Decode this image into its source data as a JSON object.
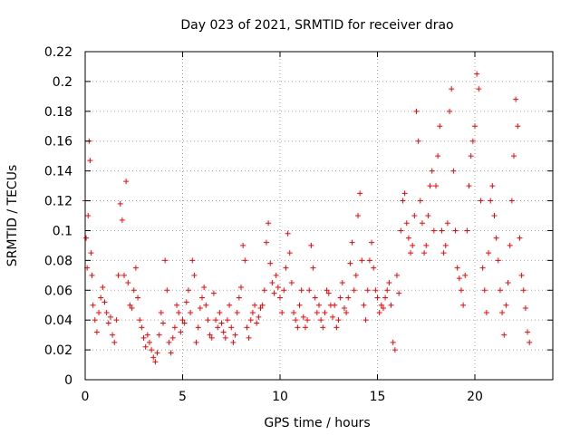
{
  "chart_data": {
    "type": "scatter",
    "title": "Day 023 of 2021, SRMTID for receiver drao",
    "xlabel": "GPS time / hours",
    "ylabel": "SRMTID / TECUs",
    "xlim": [
      0,
      24
    ],
    "ylim": [
      0,
      0.22
    ],
    "xticks": [
      0,
      5,
      10,
      15,
      20
    ],
    "xtick_labels": [
      "0",
      "5",
      "10",
      "15",
      "20"
    ],
    "yticks": [
      0,
      0.02,
      0.04,
      0.06,
      0.08,
      0.1,
      0.12,
      0.14,
      0.16,
      0.18,
      0.2,
      0.22
    ],
    "ytick_labels": [
      "0",
      "0.02",
      "0.04",
      "0.06",
      "0.08",
      "0.1",
      "0.12",
      "0.14",
      "0.16",
      "0.18",
      "0.2",
      "0.22"
    ],
    "grid": true,
    "marker": "+",
    "color": "#ff0000",
    "series": [
      {
        "name": "SRMTID",
        "points": [
          [
            0.0,
            0.12
          ],
          [
            0.05,
            0.095
          ],
          [
            0.1,
            0.075
          ],
          [
            0.15,
            0.11
          ],
          [
            0.2,
            0.16
          ],
          [
            0.25,
            0.147
          ],
          [
            0.3,
            0.085
          ],
          [
            0.35,
            0.07
          ],
          [
            0.4,
            0.05
          ],
          [
            0.5,
            0.04
          ],
          [
            0.6,
            0.032
          ],
          [
            0.7,
            0.045
          ],
          [
            0.8,
            0.055
          ],
          [
            0.9,
            0.062
          ],
          [
            1.0,
            0.052
          ],
          [
            1.1,
            0.045
          ],
          [
            1.2,
            0.038
          ],
          [
            1.3,
            0.042
          ],
          [
            1.4,
            0.03
          ],
          [
            1.5,
            0.025
          ],
          [
            1.6,
            0.04
          ],
          [
            1.7,
            0.07
          ],
          [
            1.8,
            0.118
          ],
          [
            1.9,
            0.107
          ],
          [
            2.0,
            0.07
          ],
          [
            2.1,
            0.133
          ],
          [
            2.2,
            0.065
          ],
          [
            2.3,
            0.05
          ],
          [
            2.4,
            0.048
          ],
          [
            2.5,
            0.06
          ],
          [
            2.6,
            0.075
          ],
          [
            2.7,
            0.055
          ],
          [
            2.8,
            0.04
          ],
          [
            2.9,
            0.035
          ],
          [
            3.0,
            0.028
          ],
          [
            3.1,
            0.022
          ],
          [
            3.2,
            0.03
          ],
          [
            3.3,
            0.025
          ],
          [
            3.4,
            0.02
          ],
          [
            3.5,
            0.015
          ],
          [
            3.6,
            0.012
          ],
          [
            3.7,
            0.018
          ],
          [
            3.8,
            0.03
          ],
          [
            3.9,
            0.045
          ],
          [
            4.0,
            0.038
          ],
          [
            4.1,
            0.08
          ],
          [
            4.2,
            0.06
          ],
          [
            4.3,
            0.025
          ],
          [
            4.4,
            0.018
          ],
          [
            4.5,
            0.028
          ],
          [
            4.6,
            0.035
          ],
          [
            4.7,
            0.05
          ],
          [
            4.8,
            0.045
          ],
          [
            4.9,
            0.032
          ],
          [
            5.0,
            0.04
          ],
          [
            5.1,
            0.038
          ],
          [
            5.2,
            0.052
          ],
          [
            5.3,
            0.06
          ],
          [
            5.4,
            0.045
          ],
          [
            5.5,
            0.08
          ],
          [
            5.6,
            0.07
          ],
          [
            5.7,
            0.025
          ],
          [
            5.8,
            0.035
          ],
          [
            5.9,
            0.048
          ],
          [
            6.0,
            0.055
          ],
          [
            6.1,
            0.062
          ],
          [
            6.2,
            0.05
          ],
          [
            6.3,
            0.04
          ],
          [
            6.4,
            0.03
          ],
          [
            6.5,
            0.028
          ],
          [
            6.6,
            0.058
          ],
          [
            6.7,
            0.04
          ],
          [
            6.8,
            0.035
          ],
          [
            6.9,
            0.045
          ],
          [
            7.0,
            0.038
          ],
          [
            7.1,
            0.032
          ],
          [
            7.2,
            0.028
          ],
          [
            7.3,
            0.04
          ],
          [
            7.4,
            0.05
          ],
          [
            7.5,
            0.035
          ],
          [
            7.6,
            0.025
          ],
          [
            7.7,
            0.03
          ],
          [
            7.8,
            0.045
          ],
          [
            7.9,
            0.055
          ],
          [
            8.0,
            0.062
          ],
          [
            8.1,
            0.09
          ],
          [
            8.2,
            0.08
          ],
          [
            8.3,
            0.035
          ],
          [
            8.4,
            0.028
          ],
          [
            8.5,
            0.04
          ],
          [
            8.6,
            0.045
          ],
          [
            8.7,
            0.05
          ],
          [
            8.8,
            0.038
          ],
          [
            8.9,
            0.042
          ],
          [
            9.0,
            0.048
          ],
          [
            9.1,
            0.05
          ],
          [
            9.2,
            0.06
          ],
          [
            9.3,
            0.092
          ],
          [
            9.4,
            0.105
          ],
          [
            9.5,
            0.078
          ],
          [
            9.6,
            0.065
          ],
          [
            9.7,
            0.058
          ],
          [
            9.8,
            0.07
          ],
          [
            9.9,
            0.062
          ],
          [
            10.0,
            0.055
          ],
          [
            10.1,
            0.045
          ],
          [
            10.2,
            0.06
          ],
          [
            10.3,
            0.075
          ],
          [
            10.4,
            0.098
          ],
          [
            10.5,
            0.085
          ],
          [
            10.6,
            0.065
          ],
          [
            10.7,
            0.045
          ],
          [
            10.8,
            0.04
          ],
          [
            10.9,
            0.035
          ],
          [
            11.0,
            0.05
          ],
          [
            11.1,
            0.06
          ],
          [
            11.2,
            0.042
          ],
          [
            11.3,
            0.035
          ],
          [
            11.4,
            0.04
          ],
          [
            11.5,
            0.06
          ],
          [
            11.6,
            0.09
          ],
          [
            11.7,
            0.075
          ],
          [
            11.8,
            0.055
          ],
          [
            11.9,
            0.045
          ],
          [
            12.0,
            0.05
          ],
          [
            12.1,
            0.04
          ],
          [
            12.2,
            0.035
          ],
          [
            12.3,
            0.045
          ],
          [
            12.4,
            0.06
          ],
          [
            12.5,
            0.058
          ],
          [
            12.6,
            0.05
          ],
          [
            12.7,
            0.042
          ],
          [
            12.8,
            0.05
          ],
          [
            12.9,
            0.035
          ],
          [
            13.0,
            0.04
          ],
          [
            13.1,
            0.055
          ],
          [
            13.2,
            0.065
          ],
          [
            13.3,
            0.048
          ],
          [
            13.4,
            0.045
          ],
          [
            13.5,
            0.055
          ],
          [
            13.6,
            0.078
          ],
          [
            13.7,
            0.092
          ],
          [
            13.8,
            0.06
          ],
          [
            13.9,
            0.07
          ],
          [
            14.0,
            0.11
          ],
          [
            14.1,
            0.125
          ],
          [
            14.2,
            0.08
          ],
          [
            14.3,
            0.05
          ],
          [
            14.4,
            0.04
          ],
          [
            14.5,
            0.06
          ],
          [
            14.6,
            0.08
          ],
          [
            14.7,
            0.092
          ],
          [
            14.8,
            0.075
          ],
          [
            14.9,
            0.06
          ],
          [
            15.0,
            0.055
          ],
          [
            15.1,
            0.045
          ],
          [
            15.2,
            0.05
          ],
          [
            15.3,
            0.048
          ],
          [
            15.4,
            0.055
          ],
          [
            15.5,
            0.06
          ],
          [
            15.6,
            0.065
          ],
          [
            15.7,
            0.05
          ],
          [
            15.8,
            0.025
          ],
          [
            15.9,
            0.02
          ],
          [
            16.0,
            0.07
          ],
          [
            16.1,
            0.058
          ],
          [
            16.2,
            0.1
          ],
          [
            16.3,
            0.12
          ],
          [
            16.4,
            0.125
          ],
          [
            16.5,
            0.105
          ],
          [
            16.6,
            0.095
          ],
          [
            16.7,
            0.085
          ],
          [
            16.8,
            0.09
          ],
          [
            16.9,
            0.11
          ],
          [
            17.0,
            0.18
          ],
          [
            17.1,
            0.16
          ],
          [
            17.2,
            0.12
          ],
          [
            17.3,
            0.105
          ],
          [
            17.4,
            0.085
          ],
          [
            17.5,
            0.09
          ],
          [
            17.6,
            0.11
          ],
          [
            17.7,
            0.13
          ],
          [
            17.8,
            0.14
          ],
          [
            17.9,
            0.1
          ],
          [
            18.0,
            0.13
          ],
          [
            18.1,
            0.15
          ],
          [
            18.2,
            0.17
          ],
          [
            18.3,
            0.1
          ],
          [
            18.4,
            0.085
          ],
          [
            18.5,
            0.09
          ],
          [
            18.6,
            0.105
          ],
          [
            18.7,
            0.18
          ],
          [
            18.8,
            0.195
          ],
          [
            18.9,
            0.14
          ],
          [
            19.0,
            0.1
          ],
          [
            19.1,
            0.075
          ],
          [
            19.2,
            0.068
          ],
          [
            19.3,
            0.06
          ],
          [
            19.4,
            0.05
          ],
          [
            19.5,
            0.07
          ],
          [
            19.6,
            0.1
          ],
          [
            19.7,
            0.13
          ],
          [
            19.8,
            0.15
          ],
          [
            19.9,
            0.16
          ],
          [
            20.0,
            0.17
          ],
          [
            20.1,
            0.205
          ],
          [
            20.2,
            0.195
          ],
          [
            20.3,
            0.12
          ],
          [
            20.4,
            0.075
          ],
          [
            20.5,
            0.06
          ],
          [
            20.6,
            0.045
          ],
          [
            20.7,
            0.085
          ],
          [
            20.8,
            0.12
          ],
          [
            20.9,
            0.13
          ],
          [
            21.0,
            0.11
          ],
          [
            21.1,
            0.095
          ],
          [
            21.2,
            0.08
          ],
          [
            21.3,
            0.06
          ],
          [
            21.4,
            0.045
          ],
          [
            21.5,
            0.03
          ],
          [
            21.6,
            0.05
          ],
          [
            21.7,
            0.065
          ],
          [
            21.8,
            0.09
          ],
          [
            21.9,
            0.12
          ],
          [
            22.0,
            0.15
          ],
          [
            22.1,
            0.188
          ],
          [
            22.2,
            0.17
          ],
          [
            22.3,
            0.095
          ],
          [
            22.4,
            0.07
          ],
          [
            22.5,
            0.06
          ],
          [
            22.6,
            0.048
          ],
          [
            22.7,
            0.032
          ],
          [
            22.8,
            0.025
          ]
        ]
      }
    ]
  }
}
